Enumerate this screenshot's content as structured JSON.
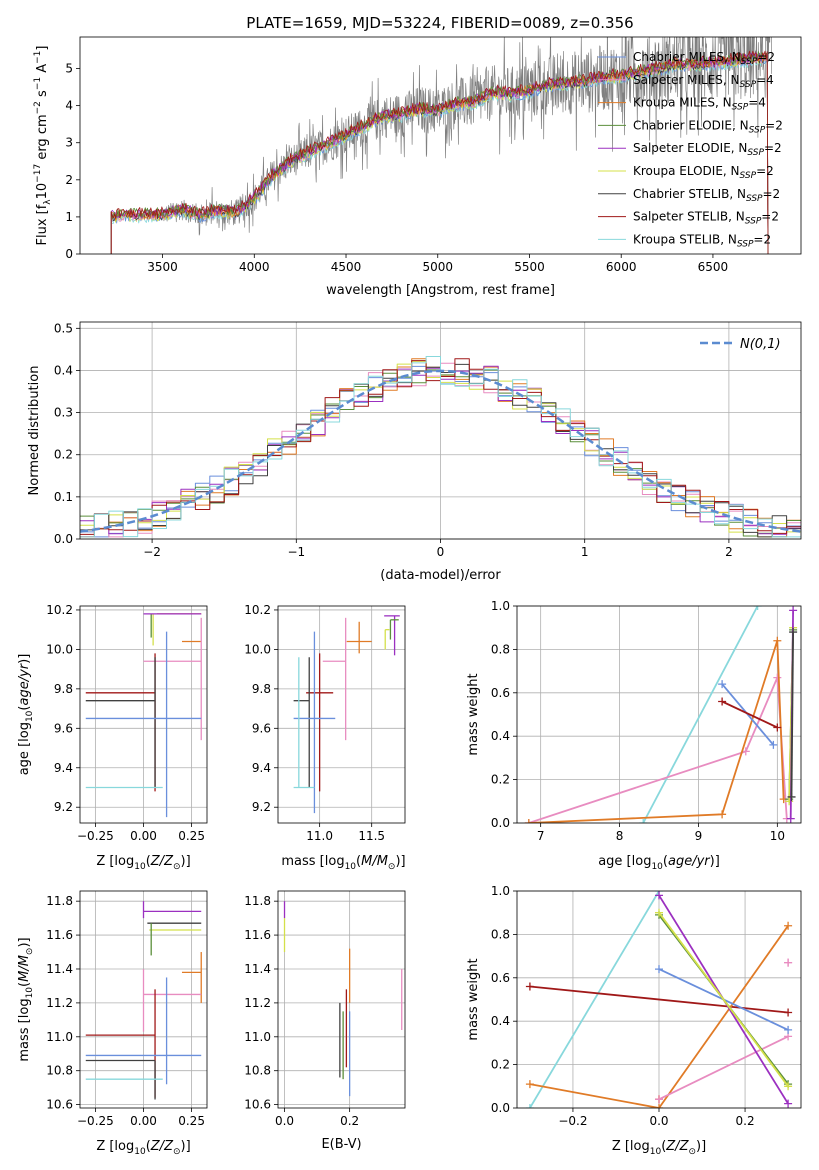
{
  "figure": {
    "title": "PLATE=1659, MJD=53224, FIBERID=0089, z=0.356"
  },
  "colors": {
    "chabrier_miles": "#6a8fdc",
    "salpeter_miles": "#e88cc0",
    "kroupa_miles": "#e07b27",
    "chabrier_elodie": "#5b8f3b",
    "salpeter_elodie": "#9b30c0",
    "kroupa_elodie": "#d4e04a",
    "chabrier_stelib": "#404040",
    "salpeter_stelib": "#a01818",
    "kroupa_stelib": "#88d8dc",
    "data": "#808080",
    "normal": "#5b8bd0"
  },
  "chart_data": [
    {
      "id": "spectrum",
      "type": "line",
      "xlabel": "wavelength [Angstrom, rest frame]",
      "ylabel": "Flux [f_λ 10^-17 erg cm^-2 s^-1 A^-1]",
      "xlim": [
        3050,
        6980
      ],
      "ylim": [
        0,
        5.85
      ],
      "xticks": [
        3500,
        4000,
        4500,
        5000,
        5500,
        6000,
        6500
      ],
      "yticks": [
        0,
        1,
        2,
        3,
        4,
        5
      ],
      "grid": false,
      "legend_position": "top-right",
      "legend": [
        {
          "label": "Chabrier MILES, N_SSP=2",
          "color_key": "chabrier_miles"
        },
        {
          "label": "Salpeter MILES, N_SSP=4",
          "color_key": "salpeter_miles"
        },
        {
          "label": "Kroupa MILES, N_SSP=4",
          "color_key": "kroupa_miles"
        },
        {
          "label": "Chabrier ELODIE, N_SSP=2",
          "color_key": "chabrier_elodie"
        },
        {
          "label": "Salpeter ELODIE, N_SSP=2",
          "color_key": "salpeter_elodie"
        },
        {
          "label": "Kroupa ELODIE, N_SSP=2",
          "color_key": "kroupa_elodie"
        },
        {
          "label": "Chabrier STELIB, N_SSP=2",
          "color_key": "chabrier_stelib"
        },
        {
          "label": "Salpeter STELIB, N_SSP=2",
          "color_key": "salpeter_stelib"
        },
        {
          "label": "Kroupa STELIB, N_SSP=2",
          "color_key": "kroupa_stelib"
        }
      ],
      "model_continuum": {
        "x": [
          3220,
          3300,
          3400,
          3500,
          3600,
          3700,
          3800,
          3900,
          4000,
          4100,
          4200,
          4300,
          4400,
          4500,
          4600,
          4700,
          4800,
          4900,
          5000,
          5100,
          5200,
          5300,
          5400,
          5500,
          5600,
          5700,
          5800,
          5900,
          6000,
          6100,
          6200,
          6300,
          6400,
          6500,
          6600,
          6700,
          6800
        ],
        "y": [
          1.0,
          1.05,
          1.05,
          1.05,
          1.2,
          1.05,
          1.15,
          1.1,
          1.5,
          2.1,
          2.5,
          2.75,
          2.95,
          3.2,
          3.45,
          3.7,
          3.75,
          3.9,
          3.85,
          4.05,
          4.1,
          4.35,
          4.3,
          4.4,
          4.55,
          4.6,
          4.65,
          4.75,
          4.8,
          4.9,
          5.0,
          5.1,
          5.1,
          5.15,
          5.2,
          5.25,
          5.3
        ]
      }
    },
    {
      "id": "residual-histogram",
      "type": "line",
      "xlabel": "(data-model)/error",
      "ylabel": "Normed distribution",
      "xlim": [
        -2.5,
        2.5
      ],
      "ylim": [
        0,
        0.515
      ],
      "xticks": [
        -2,
        -1,
        0,
        1,
        2
      ],
      "yticks": [
        0.0,
        0.1,
        0.2,
        0.3,
        0.4,
        0.5
      ],
      "grid": true,
      "legend_position": "top-right",
      "normal_label": "N(0,1)",
      "bin_edges_start": -2.5,
      "bin_width": 0.1
    },
    {
      "id": "age-vs-Z",
      "type": "scatter",
      "xlabel": "Z [log10(Z/Z_sun)]",
      "ylabel": "age [log10(age/yr)]",
      "xlim": [
        -0.33,
        0.33
      ],
      "ylim": [
        9.12,
        10.22
      ],
      "xticks": [
        -0.25,
        0.0,
        0.25
      ],
      "yticks": [
        9.2,
        9.4,
        9.6,
        9.8,
        10.0,
        10.2
      ],
      "grid": true,
      "points": [
        {
          "key": "kroupa_miles",
          "x": 0.2,
          "xerr": [
            0.13,
            0.1
          ],
          "y": 10.18,
          "yerr": [
            0.0,
            0.0
          ]
        },
        {
          "key": "kroupa_miles",
          "x": 0.25,
          "xerr": [
            0.05,
            0.05
          ],
          "y": 10.04,
          "yerr": [
            0.0,
            0.0
          ]
        },
        {
          "key": "kroupa_elodie",
          "x": 0.05,
          "xerr": [
            0.0,
            0.0
          ],
          "y": 10.15,
          "yerr": [
            0.13,
            0.03
          ]
        },
        {
          "key": "chabrier_elodie",
          "x": 0.04,
          "xerr": [
            0.0,
            0.0
          ],
          "y": 10.16,
          "yerr": [
            0.1,
            0.02
          ]
        },
        {
          "key": "salpeter_elodie",
          "x": 0.03,
          "xerr": [
            0.03,
            0.27
          ],
          "y": 10.18,
          "yerr": [
            0.0,
            0.0
          ]
        },
        {
          "key": "salpeter_miles",
          "x": 0.3,
          "xerr": [
            0.3,
            0.0
          ],
          "y": 9.94,
          "yerr": [
            0.4,
            0.22
          ]
        },
        {
          "key": "salpeter_stelib",
          "x": 0.06,
          "xerr": [
            0.36,
            0.0
          ],
          "y": 9.78,
          "yerr": [
            0.5,
            0.2
          ]
        },
        {
          "key": "chabrier_stelib",
          "x": 0.06,
          "xerr": [
            0.36,
            0.0
          ],
          "y": 9.74,
          "yerr": [
            0.44,
            0.22
          ]
        },
        {
          "key": "chabrier_miles",
          "x": 0.12,
          "xerr": [
            0.42,
            0.18
          ],
          "y": 9.65,
          "yerr": [
            0.5,
            0.44
          ]
        },
        {
          "key": "kroupa_stelib",
          "x": -0.1,
          "xerr": [
            0.2,
            0.2
          ],
          "y": 9.3,
          "yerr": [
            0.0,
            0.0
          ]
        }
      ]
    },
    {
      "id": "age-vs-mass",
      "type": "scatter",
      "xlabel": "mass [log10(M/M_sun)]",
      "ylabel": "",
      "xlim": [
        10.6,
        11.82
      ],
      "ylim": [
        9.12,
        10.22
      ],
      "xticks": [
        11.0,
        11.5
      ],
      "yticks": [
        9.2,
        9.4,
        9.6,
        9.8,
        10.0,
        10.2
      ],
      "grid": true,
      "points": [
        {
          "key": "salpeter_elodie",
          "x": 11.72,
          "xerr": [
            0.1,
            0.05
          ],
          "y": 10.17,
          "yerr": [
            0.2,
            0.0
          ]
        },
        {
          "key": "chabrier_elodie",
          "x": 11.68,
          "xerr": [
            0.0,
            0.08
          ],
          "y": 10.15,
          "yerr": [
            0.1,
            0.0
          ]
        },
        {
          "key": "kroupa_elodie",
          "x": 11.63,
          "xerr": [
            0.0,
            0.04
          ],
          "y": 10.1,
          "yerr": [
            0.1,
            0.0
          ]
        },
        {
          "key": "kroupa_miles",
          "x": 11.38,
          "xerr": [
            0.12,
            0.12
          ],
          "y": 10.04,
          "yerr": [
            0.06,
            0.1
          ]
        },
        {
          "key": "salpeter_miles",
          "x": 11.25,
          "xerr": [
            0.22,
            0.0
          ],
          "y": 9.94,
          "yerr": [
            0.4,
            0.22
          ]
        },
        {
          "key": "salpeter_stelib",
          "x": 11.0,
          "xerr": [
            0.13,
            0.13
          ],
          "y": 9.78,
          "yerr": [
            0.5,
            0.2
          ]
        },
        {
          "key": "chabrier_stelib",
          "x": 10.9,
          "xerr": [
            0.15,
            0.0
          ],
          "y": 9.74,
          "yerr": [
            0.44,
            0.22
          ]
        },
        {
          "key": "chabrier_miles",
          "x": 10.95,
          "xerr": [
            0.2,
            0.2
          ],
          "y": 9.65,
          "yerr": [
            0.48,
            0.44
          ]
        },
        {
          "key": "kroupa_stelib",
          "x": 10.8,
          "xerr": [
            0.05,
            0.15
          ],
          "y": 9.3,
          "yerr": [
            0.0,
            0.66
          ]
        }
      ]
    },
    {
      "id": "massweight-vs-age",
      "type": "line",
      "xlabel": "age [log10(age/yr)]",
      "ylabel": "mass weight",
      "xlim": [
        6.7,
        10.3
      ],
      "ylim": [
        0,
        1
      ],
      "xticks": [
        7,
        8,
        9,
        10
      ],
      "yticks": [
        0.0,
        0.2,
        0.4,
        0.6,
        0.8,
        1.0
      ],
      "grid": true,
      "series": [
        {
          "key": "kroupa_stelib",
          "x": [
            8.3,
            9.75
          ],
          "y": [
            0.0,
            1.0
          ]
        },
        {
          "key": "salpeter_miles",
          "x": [
            6.85,
            9.6,
            10.0,
            10.12
          ],
          "y": [
            0.0,
            0.33,
            0.67,
            0.02
          ]
        },
        {
          "key": "kroupa_miles",
          "x": [
            6.85,
            9.3,
            10.0,
            10.08
          ],
          "y": [
            0.0,
            0.04,
            0.84,
            0.11
          ]
        },
        {
          "key": "chabrier_miles",
          "x": [
            9.3,
            9.95
          ],
          "y": [
            0.64,
            0.36
          ]
        },
        {
          "key": "salpeter_stelib",
          "x": [
            9.3,
            10.0
          ],
          "y": [
            0.56,
            0.44
          ]
        },
        {
          "key": "chabrier_elodie",
          "x": [
            10.15,
            10.2
          ],
          "y": [
            0.11,
            0.89
          ]
        },
        {
          "key": "kroupa_elodie",
          "x": [
            10.15,
            10.2
          ],
          "y": [
            0.1,
            0.9
          ]
        },
        {
          "key": "salpeter_elodie",
          "x": [
            10.17,
            10.2
          ],
          "y": [
            0.02,
            0.98
          ]
        },
        {
          "key": "chabrier_stelib",
          "x": [
            10.18,
            10.2
          ],
          "y": [
            0.12,
            0.88
          ]
        }
      ]
    },
    {
      "id": "mass-vs-Z",
      "type": "scatter",
      "xlabel": "Z [log10(Z/Z_sun)]",
      "ylabel": "mass [log10(M/M_sun)]",
      "xlim": [
        -0.33,
        0.33
      ],
      "ylim": [
        10.58,
        11.86
      ],
      "xticks": [
        -0.25,
        0.0,
        0.25
      ],
      "yticks": [
        10.6,
        10.8,
        11.0,
        11.2,
        11.4,
        11.6,
        11.8
      ],
      "grid": true,
      "points": [
        {
          "key": "salpeter_elodie",
          "x": 0.0,
          "xerr": [
            0.0,
            0.3
          ],
          "y": 11.74,
          "yerr": [
            0.04,
            0.06
          ]
        },
        {
          "key": "chabrier_stelib",
          "x": 0.02,
          "xerr": [
            0.0,
            0.28
          ],
          "y": 11.67,
          "yerr": [
            0.0,
            0.0
          ]
        },
        {
          "key": "kroupa_elodie",
          "x": 0.03,
          "xerr": [
            0.0,
            0.27
          ],
          "y": 11.63,
          "yerr": [
            0.0,
            0.0
          ]
        },
        {
          "key": "chabrier_elodie",
          "x": 0.04,
          "xerr": [
            0.0,
            0.0
          ],
          "y": 11.62,
          "yerr": [
            0.14,
            0.05
          ]
        },
        {
          "key": "kroupa_miles",
          "x": 0.3,
          "xerr": [
            0.1,
            0.0
          ],
          "y": 11.38,
          "yerr": [
            0.18,
            0.12
          ]
        },
        {
          "key": "salpeter_miles",
          "x": 0.0,
          "xerr": [
            0.0,
            0.3
          ],
          "y": 11.25,
          "yerr": [
            0.22,
            0.15
          ]
        },
        {
          "key": "salpeter_stelib",
          "x": 0.06,
          "xerr": [
            0.36,
            0.0
          ],
          "y": 11.01,
          "yerr": [
            0.37,
            0.27
          ]
        },
        {
          "key": "chabrier_miles",
          "x": 0.12,
          "xerr": [
            0.42,
            0.18
          ],
          "y": 10.89,
          "yerr": [
            0.17,
            0.46
          ]
        },
        {
          "key": "chabrier_stelib",
          "x": 0.06,
          "xerr": [
            0.36,
            0.0
          ],
          "y": 10.86,
          "yerr": [
            0.23,
            0.0
          ]
        },
        {
          "key": "kroupa_stelib",
          "x": -0.1,
          "xerr": [
            0.2,
            0.2
          ],
          "y": 10.75,
          "yerr": [
            0.0,
            0.0
          ]
        }
      ]
    },
    {
      "id": "mass-vs-ebv",
      "type": "scatter",
      "xlabel": "E(B-V)",
      "ylabel": "",
      "xlim": [
        -0.02,
        0.37
      ],
      "ylim": [
        10.58,
        11.86
      ],
      "xticks": [
        0.0,
        0.2
      ],
      "yticks": [
        10.6,
        10.8,
        11.0,
        11.2,
        11.4,
        11.6,
        11.8
      ],
      "grid": true,
      "points": [
        {
          "key": "salpeter_elodie",
          "x": 0.0,
          "xerr": [
            0.0,
            0.0
          ],
          "y": 11.74,
          "yerr": [
            0.04,
            0.06
          ]
        },
        {
          "key": "kroupa_elodie",
          "x": 0.0,
          "xerr": [
            0.0,
            0.0
          ],
          "y": 11.6,
          "yerr": [
            0.1,
            0.1
          ]
        },
        {
          "key": "kroupa_miles",
          "x": 0.2,
          "xerr": [
            0.0,
            0.0
          ],
          "y": 11.35,
          "yerr": [
            0.15,
            0.17
          ]
        },
        {
          "key": "salpeter_miles",
          "x": 0.36,
          "xerr": [
            0.0,
            0.0
          ],
          "y": 11.22,
          "yerr": [
            0.18,
            0.18
          ]
        },
        {
          "key": "salpeter_stelib",
          "x": 0.19,
          "xerr": [
            0.0,
            0.0
          ],
          "y": 11.05,
          "yerr": [
            0.23,
            0.23
          ]
        },
        {
          "key": "chabrier_stelib",
          "x": 0.17,
          "xerr": [
            0.0,
            0.0
          ],
          "y": 10.98,
          "yerr": [
            0.22,
            0.22
          ]
        },
        {
          "key": "chabrier_elodie",
          "x": 0.18,
          "xerr": [
            0.0,
            0.0
          ],
          "y": 10.95,
          "yerr": [
            0.2,
            0.2
          ]
        },
        {
          "key": "chabrier_miles",
          "x": 0.2,
          "xerr": [
            0.0,
            0.0
          ],
          "y": 10.9,
          "yerr": [
            0.25,
            0.25
          ]
        }
      ]
    },
    {
      "id": "massweight-vs-Z",
      "type": "line",
      "xlabel": "Z [log10(Z/Z_sun)]",
      "ylabel": "mass weight",
      "xlim": [
        -0.33,
        0.33
      ],
      "ylim": [
        0,
        1
      ],
      "xticks": [
        -0.2,
        0.0,
        0.2
      ],
      "yticks": [
        0.0,
        0.2,
        0.4,
        0.6,
        0.8,
        1.0
      ],
      "grid": true,
      "series": [
        {
          "key": "kroupa_stelib",
          "x": [
            -0.3,
            0.0
          ],
          "y": [
            0.0,
            1.0
          ]
        },
        {
          "key": "salpeter_stelib",
          "x": [
            -0.3,
            0.3
          ],
          "y": [
            0.56,
            0.44
          ]
        },
        {
          "key": "kroupa_miles",
          "x": [
            -0.3,
            0.0,
            0.3
          ],
          "y": [
            0.11,
            0.0,
            0.84
          ]
        },
        {
          "key": "kroupa_miles",
          "x": [
            0.0,
            0.0
          ],
          "y": [
            0.04,
            0.04
          ]
        },
        {
          "key": "salpeter_miles",
          "x": [
            0.0,
            0.3
          ],
          "y": [
            0.04,
            0.33
          ]
        },
        {
          "key": "salpeter_miles",
          "x": [
            0.3,
            0.3
          ],
          "y": [
            0.67,
            0.67
          ]
        },
        {
          "key": "chabrier_miles",
          "x": [
            0.0,
            0.3
          ],
          "y": [
            0.64,
            0.36
          ]
        },
        {
          "key": "salpeter_elodie",
          "x": [
            0.0,
            0.3
          ],
          "y": [
            0.98,
            0.02
          ]
        },
        {
          "key": "chabrier_elodie",
          "x": [
            0.0,
            0.3
          ],
          "y": [
            0.89,
            0.11
          ]
        },
        {
          "key": "kroupa_elodie",
          "x": [
            0.0,
            0.3
          ],
          "y": [
            0.9,
            0.1
          ]
        }
      ]
    }
  ]
}
